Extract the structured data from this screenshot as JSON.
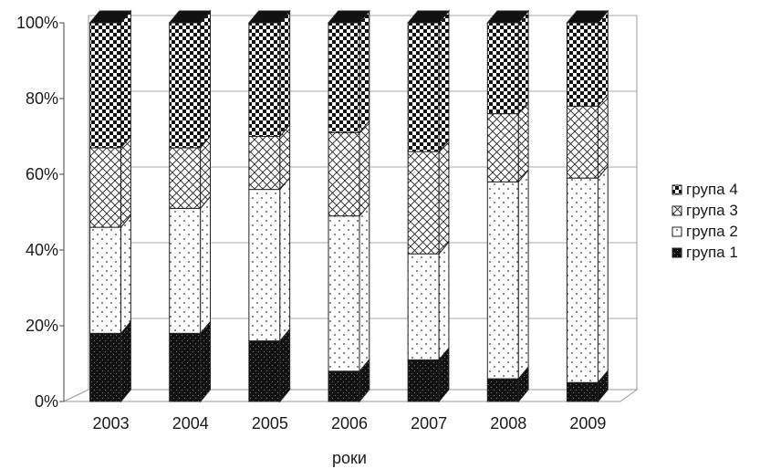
{
  "chart_data": {
    "type": "bar",
    "stacked": "percent",
    "three_d": true,
    "categories": [
      "2003",
      "2004",
      "2005",
      "2006",
      "2007",
      "2008",
      "2009"
    ],
    "series": [
      {
        "name": "група 1",
        "values": [
          18,
          18,
          16,
          8,
          11,
          6,
          5
        ]
      },
      {
        "name": "група 2",
        "values": [
          28,
          33,
          40,
          41,
          28,
          52,
          54
        ]
      },
      {
        "name": "група 3",
        "values": [
          21,
          16,
          14,
          22,
          27,
          18,
          19
        ]
      },
      {
        "name": "група 4",
        "values": [
          33,
          33,
          30,
          29,
          34,
          24,
          22
        ]
      }
    ],
    "y_ticks": [
      "0%",
      "20%",
      "40%",
      "60%",
      "80%",
      "100%"
    ],
    "ylim": [
      0,
      100
    ],
    "xlabel": "роки",
    "ylabel": "",
    "title": "",
    "grid": true,
    "legend_position": "right",
    "legend_order": [
      "група 4",
      "група 3",
      "група 2",
      "група 1"
    ],
    "patterns": {
      "група 1": "black-dots",
      "група 2": "white-dots",
      "група 3": "diagonal-crosshatch",
      "група 4": "checkerboard"
    }
  }
}
